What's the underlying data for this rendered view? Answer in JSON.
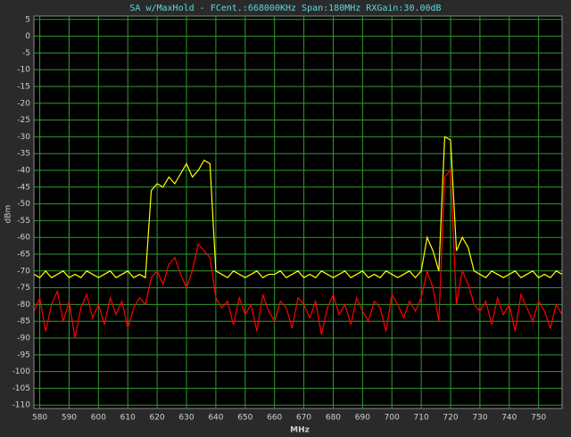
{
  "chart_data": {
    "type": "line",
    "title": "SA w/MaxHold - FCent.:668000KHz Span:180MHz RXGain:30.00dB",
    "x_label": "MHz",
    "y_label": "dBm",
    "x": [
      578,
      580,
      582,
      584,
      586,
      588,
      590,
      592,
      594,
      596,
      598,
      600,
      602,
      604,
      606,
      608,
      610,
      612,
      614,
      616,
      618,
      620,
      622,
      624,
      626,
      628,
      630,
      632,
      634,
      636,
      638,
      640,
      642,
      644,
      646,
      648,
      650,
      652,
      654,
      656,
      658,
      660,
      662,
      664,
      666,
      668,
      670,
      672,
      674,
      676,
      678,
      680,
      682,
      684,
      686,
      688,
      690,
      692,
      694,
      696,
      698,
      700,
      702,
      704,
      706,
      708,
      710,
      712,
      714,
      716,
      718,
      720,
      722,
      724,
      726,
      728,
      730,
      732,
      734,
      736,
      738,
      740,
      742,
      744,
      746,
      748,
      750,
      752,
      754,
      756,
      758
    ],
    "series": [
      {
        "color": "#ffff00",
        "values": [
          -71,
          -72,
          -70,
          -72,
          -71,
          -70,
          -72,
          -71,
          -72,
          -70,
          -71,
          -72,
          -71,
          -70,
          -72,
          -71,
          -70,
          -72,
          -71,
          -72,
          -46,
          -44,
          -45,
          -42,
          -44,
          -41,
          -38,
          -42,
          -40,
          -37,
          -38,
          -70,
          -71,
          -72,
          -70,
          -71,
          -72,
          -71,
          -70,
          -72,
          -71,
          -71,
          -70,
          -72,
          -71,
          -70,
          -72,
          -71,
          -72,
          -70,
          -71,
          -72,
          -71,
          -70,
          -72,
          -71,
          -70,
          -72,
          -71,
          -72,
          -70,
          -71,
          -72,
          -71,
          -70,
          -72,
          -70,
          -60,
          -64,
          -70,
          -30,
          -31,
          -64,
          -60,
          -63,
          -70,
          -71,
          -72,
          -70,
          -71,
          -72,
          -71,
          -70,
          -72,
          -71,
          -70,
          -72,
          -71,
          -72,
          -70,
          -71
        ]
      },
      {
        "color": "#ff0000",
        "values": [
          -82,
          -78,
          -88,
          -80,
          -76,
          -85,
          -79,
          -90,
          -81,
          -77,
          -84,
          -80,
          -86,
          -78,
          -83,
          -79,
          -87,
          -81,
          -78,
          -80,
          -72,
          -70,
          -74,
          -68,
          -66,
          -71,
          -75,
          -70,
          -62,
          -64,
          -66,
          -78,
          -81,
          -79,
          -86,
          -78,
          -83,
          -80,
          -88,
          -77,
          -82,
          -85,
          -79,
          -81,
          -87,
          -78,
          -80,
          -84,
          -79,
          -89,
          -81,
          -77,
          -83,
          -80,
          -86,
          -78,
          -82,
          -85,
          -79,
          -81,
          -88,
          -77,
          -80,
          -84,
          -79,
          -82,
          -78,
          -70,
          -75,
          -85,
          -42,
          -40,
          -80,
          -70,
          -74,
          -80,
          -82,
          -79,
          -86,
          -78,
          -83,
          -80,
          -88,
          -77,
          -81,
          -85,
          -79,
          -82,
          -87,
          -80,
          -83
        ]
      }
    ],
    "xlim": [
      578,
      758
    ],
    "ylim": [
      -111,
      6
    ],
    "xticks": [
      580,
      590,
      600,
      610,
      620,
      630,
      640,
      650,
      660,
      670,
      680,
      690,
      700,
      710,
      720,
      730,
      740,
      750
    ],
    "yticks": [
      5,
      0,
      -5,
      -10,
      -15,
      -20,
      -25,
      -30,
      -35,
      -40,
      -45,
      -50,
      -55,
      -60,
      -65,
      -70,
      -75,
      -80,
      -85,
      -90,
      -95,
      -100,
      -105,
      -110
    ],
    "grid": true,
    "grid_color": "#2f9a2f",
    "background": "#000000"
  }
}
